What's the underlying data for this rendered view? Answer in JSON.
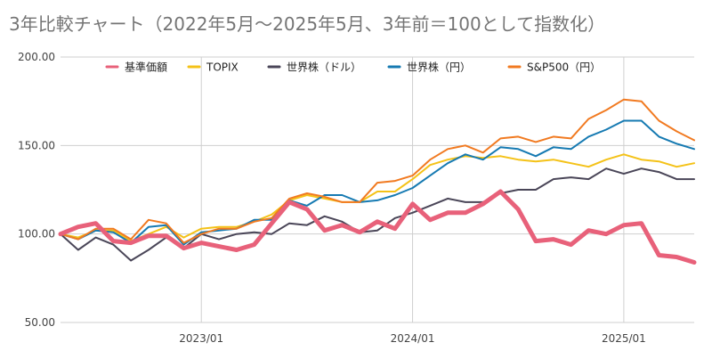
{
  "chart_data": {
    "type": "line",
    "title": "3年比較チャート（2022年5月～2025年5月、3年前＝100として指数化）",
    "xlabel": "",
    "ylabel": "",
    "ylim": [
      50,
      200
    ],
    "yticks": [
      "50.00",
      "100.00",
      "150.00",
      "200.00"
    ],
    "xticks": [
      "2023/01",
      "2024/01",
      "2025/01"
    ],
    "grid": true,
    "legend_position": "top",
    "x": [
      "2022/05",
      "2022/06",
      "2022/07",
      "2022/08",
      "2022/09",
      "2022/10",
      "2022/11",
      "2022/12",
      "2023/01",
      "2023/02",
      "2023/03",
      "2023/04",
      "2023/05",
      "2023/06",
      "2023/07",
      "2023/08",
      "2023/09",
      "2023/10",
      "2023/11",
      "2023/12",
      "2024/01",
      "2024/02",
      "2024/03",
      "2024/04",
      "2024/05",
      "2024/06",
      "2024/07",
      "2024/08",
      "2024/09",
      "2024/10",
      "2024/11",
      "2024/12",
      "2025/01",
      "2025/02",
      "2025/03",
      "2025/04",
      "2025/05"
    ],
    "series": [
      {
        "name": "基準価額",
        "color": "#e8617a",
        "width": 5,
        "values": [
          100,
          104,
          106,
          96,
          95,
          99,
          99,
          92,
          95,
          93,
          91,
          94,
          106,
          118,
          114,
          102,
          105,
          101,
          107,
          103,
          117,
          108,
          112,
          112,
          117,
          124,
          114,
          96,
          97,
          94,
          102,
          100,
          105,
          106,
          88,
          87,
          84
        ]
      },
      {
        "name": "TOPIX",
        "color": "#f4c218",
        "width": 2,
        "values": [
          100,
          98,
          102,
          102,
          96,
          100,
          104,
          98,
          103,
          104,
          104,
          107,
          111,
          119,
          122,
          120,
          118,
          118,
          124,
          124,
          131,
          139,
          142,
          144,
          143,
          144,
          142,
          141,
          142,
          140,
          138,
          142,
          145,
          142,
          141,
          138,
          140
        ]
      },
      {
        "name": "世界株（ドル）",
        "color": "#4a4658",
        "width": 2,
        "values": [
          100,
          91,
          98,
          94,
          85,
          91,
          98,
          92,
          100,
          97,
          100,
          101,
          100,
          106,
          105,
          110,
          107,
          101,
          102,
          109,
          112,
          116,
          120,
          118,
          118,
          123,
          125,
          125,
          131,
          132,
          131,
          137,
          134,
          137,
          135,
          131,
          131
        ]
      },
      {
        "name": "世界株（円）",
        "color": "#167ab2",
        "width": 2,
        "values": [
          100,
          97,
          102,
          101,
          95,
          104,
          105,
          94,
          101,
          102,
          103,
          108,
          108,
          119,
          116,
          122,
          122,
          118,
          119,
          122,
          126,
          133,
          140,
          145,
          142,
          149,
          148,
          144,
          149,
          148,
          155,
          159,
          164,
          164,
          155,
          151,
          148
        ]
      },
      {
        "name": "S&P500（円）",
        "color": "#f17a21",
        "width": 2,
        "values": [
          100,
          97,
          103,
          103,
          97,
          108,
          106,
          95,
          100,
          103,
          103,
          107,
          109,
          120,
          123,
          121,
          118,
          118,
          129,
          130,
          133,
          142,
          148,
          150,
          146,
          154,
          155,
          152,
          155,
          154,
          165,
          170,
          176,
          175,
          164,
          158,
          153
        ]
      }
    ]
  }
}
